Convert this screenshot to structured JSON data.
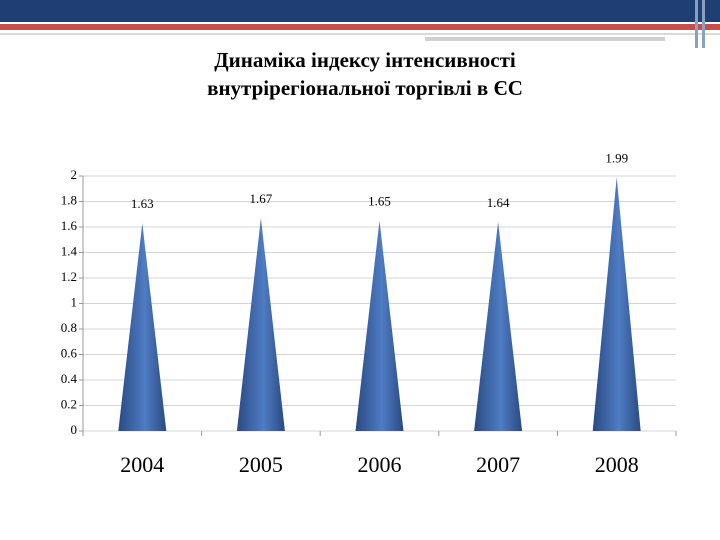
{
  "chart_data": {
    "type": "cone",
    "title": [
      "Динаміка індексу інтенсивності",
      "внутрірегіональної торгівлі в ЄС"
    ],
    "categories": [
      "2004",
      "2005",
      "2006",
      "2007",
      "2008"
    ],
    "values": [
      1.63,
      1.67,
      1.65,
      1.64,
      1.99
    ],
    "ylim": [
      0,
      2
    ],
    "yticks": [
      0,
      0.2,
      0.4,
      0.6,
      0.8,
      1,
      1.2,
      1.4,
      1.6,
      1.8,
      2
    ],
    "grid": true,
    "color": "#4f7cc4"
  }
}
